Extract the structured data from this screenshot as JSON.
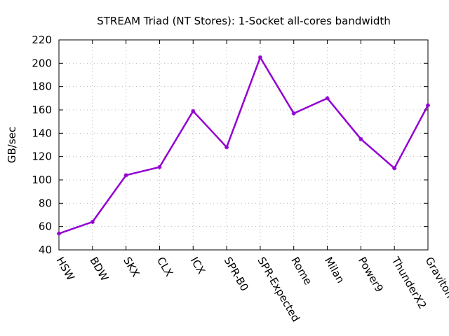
{
  "chart_data": {
    "type": "line",
    "title": "STREAM Triad (NT Stores): 1-Socket all-cores bandwidth",
    "xlabel": "",
    "ylabel": "GB/sec",
    "ylim": [
      40,
      220
    ],
    "yticks": [
      40,
      60,
      80,
      100,
      120,
      140,
      160,
      180,
      200,
      220
    ],
    "grid": true,
    "categories": [
      "HSW",
      "BDW",
      "SKX",
      "CLX",
      "ICX",
      "SPR-B0",
      "SPR-Expected",
      "Rome",
      "Milan",
      "Power9",
      "ThunderX2",
      "Graviton"
    ],
    "series": [
      {
        "color": "#9400d3",
        "values": [
          54,
          64,
          104,
          111,
          159,
          128,
          205,
          157,
          170,
          135,
          110,
          164
        ]
      }
    ]
  }
}
